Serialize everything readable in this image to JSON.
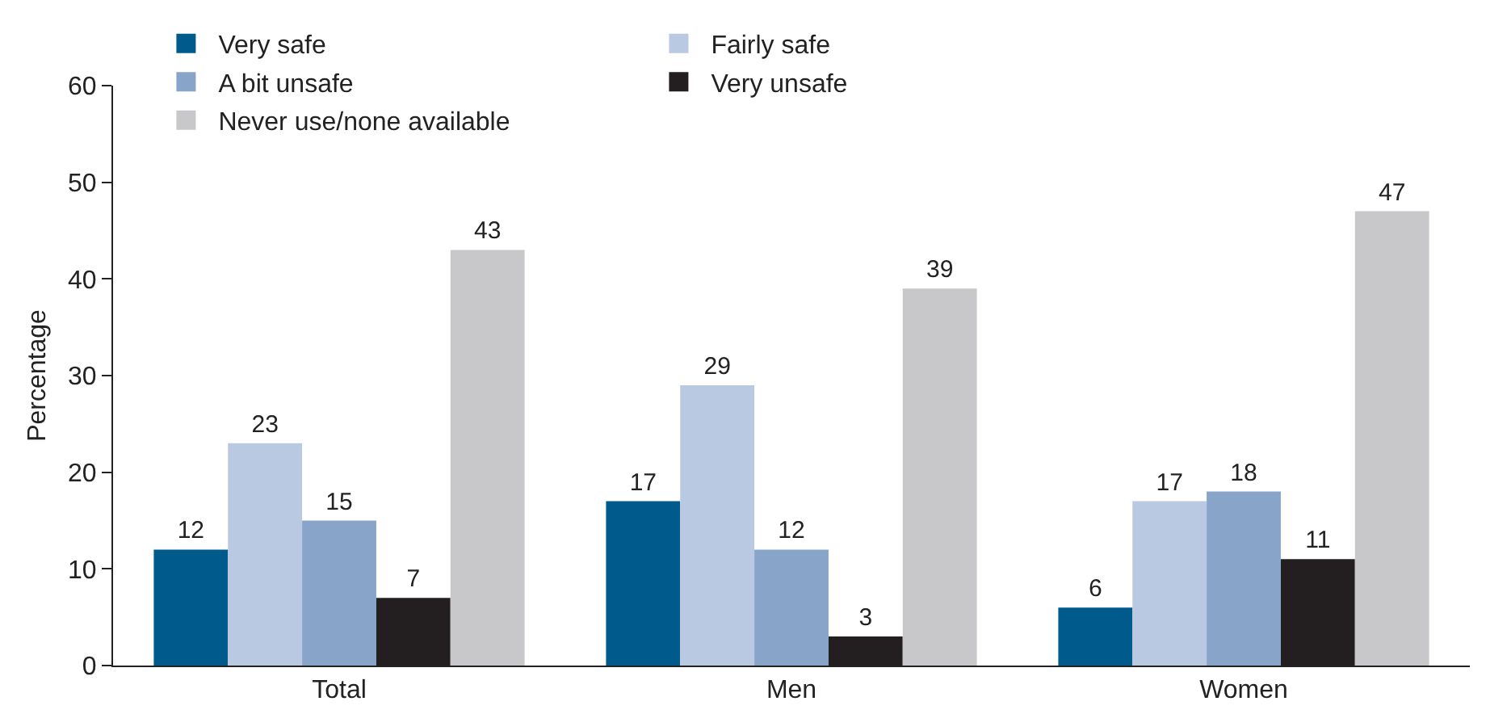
{
  "chart_data": {
    "type": "bar",
    "ylabel": "Percentage",
    "categories": [
      "Total",
      "Men",
      "Women"
    ],
    "series": [
      {
        "name": "Very safe",
        "color": "#005a8c",
        "values": [
          12,
          17,
          6
        ]
      },
      {
        "name": "Fairly safe",
        "color": "#b8c9e1",
        "values": [
          23,
          29,
          17
        ]
      },
      {
        "name": "A bit unsafe",
        "color": "#88a5c9",
        "values": [
          15,
          12,
          18
        ]
      },
      {
        "name": "Very unsafe",
        "color": "#231f20",
        "values": [
          7,
          3,
          11
        ]
      },
      {
        "name": "Never use/none available",
        "color": "#c8c8ca",
        "values": [
          43,
          39,
          47
        ]
      }
    ],
    "ylim": [
      0,
      60
    ],
    "yticks": [
      0,
      10,
      20,
      30,
      40,
      50,
      60
    ],
    "grid": false,
    "legend": "top left",
    "data_labels": true
  }
}
